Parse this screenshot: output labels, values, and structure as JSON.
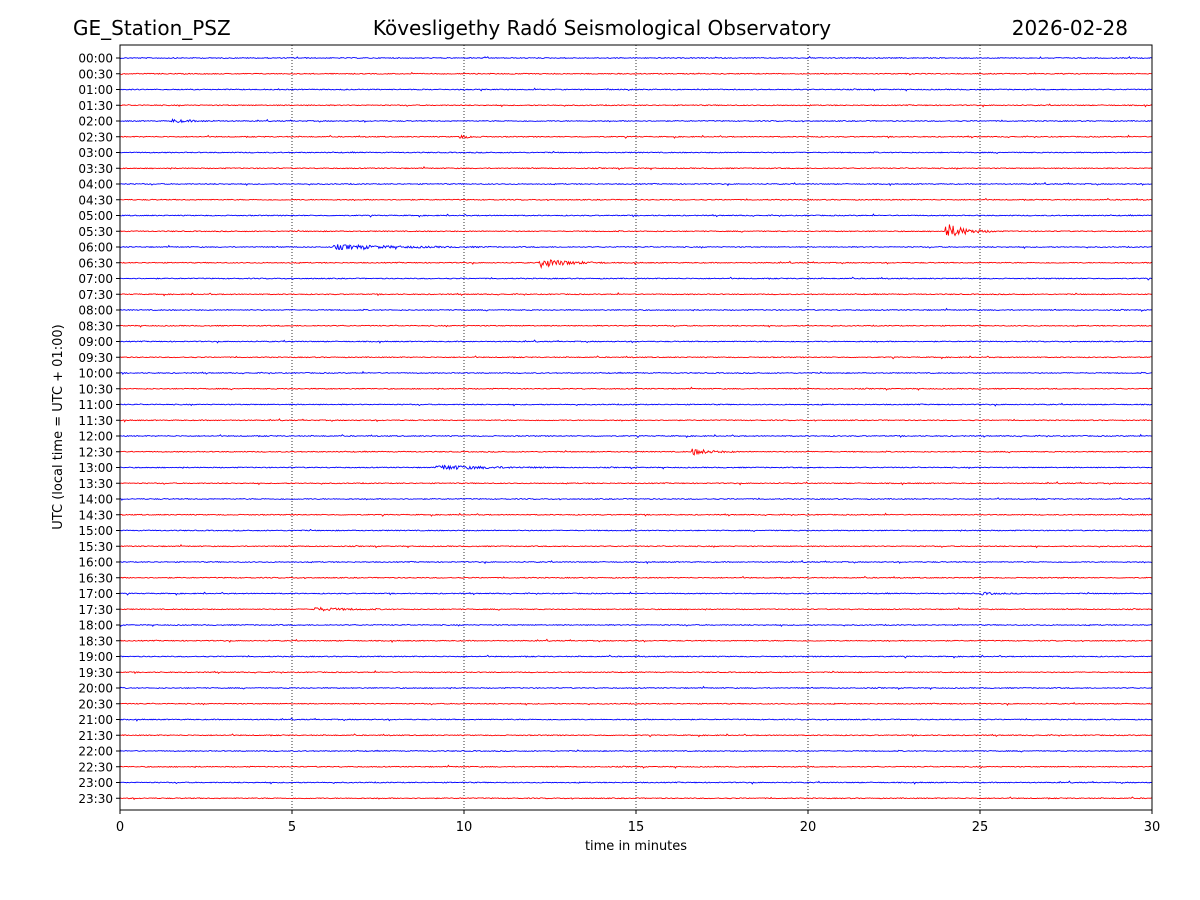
{
  "header": {
    "station": "GE_Station_PSZ",
    "observatory": "Kövesligethy Radó Seismological Observatory",
    "date": "2026-02-28"
  },
  "chart_data": {
    "type": "line",
    "title": "Kövesligethy Radó Seismological Observatory",
    "xlabel": "time in minutes",
    "ylabel": "UTC (local time = UTC + 01:00)",
    "xlim": [
      0,
      30
    ],
    "xticks": [
      0,
      5,
      10,
      15,
      20,
      25,
      30
    ],
    "x_gridlines": [
      5,
      10,
      15,
      20,
      25
    ],
    "grid": "vertical dotted",
    "row_labels": [
      "00:00",
      "00:30",
      "01:00",
      "01:30",
      "02:00",
      "02:30",
      "03:00",
      "03:30",
      "04:00",
      "04:30",
      "05:00",
      "05:30",
      "06:00",
      "06:30",
      "07:00",
      "07:30",
      "08:00",
      "08:30",
      "09:00",
      "09:30",
      "10:00",
      "10:30",
      "11:00",
      "11:30",
      "12:00",
      "12:30",
      "13:00",
      "13:30",
      "14:00",
      "14:30",
      "15:00",
      "15:30",
      "16:00",
      "16:30",
      "17:00",
      "17:30",
      "18:00",
      "18:30",
      "19:00",
      "19:30",
      "20:00",
      "20:30",
      "21:00",
      "21:30",
      "22:00",
      "22:30",
      "23:00",
      "23:30"
    ],
    "row_colors": [
      "#0000ff",
      "#ff0000"
    ],
    "events": [
      {
        "row": "02:00",
        "start_min": 1.5,
        "end_min": 3.0,
        "amplitude": 1.5
      },
      {
        "row": "02:30",
        "start_min": 9.8,
        "end_min": 10.7,
        "amplitude": 1.8
      },
      {
        "row": "05:30",
        "start_min": 24.0,
        "end_min": 25.5,
        "amplitude": 7
      },
      {
        "row": "06:00",
        "start_min": 6.2,
        "end_min": 10.8,
        "amplitude": 2.2
      },
      {
        "row": "06:30",
        "start_min": 12.2,
        "end_min": 14.2,
        "amplitude": 4.5
      },
      {
        "row": "12:30",
        "start_min": 16.6,
        "end_min": 18.0,
        "amplitude": 3
      },
      {
        "row": "13:00",
        "start_min": 9.2,
        "end_min": 12.8,
        "amplitude": 2.2
      },
      {
        "row": "17:00",
        "start_min": 25.0,
        "end_min": 26.2,
        "amplitude": 1.2
      },
      {
        "row": "17:30",
        "start_min": 5.6,
        "end_min": 8.0,
        "amplitude": 1.6
      }
    ]
  }
}
